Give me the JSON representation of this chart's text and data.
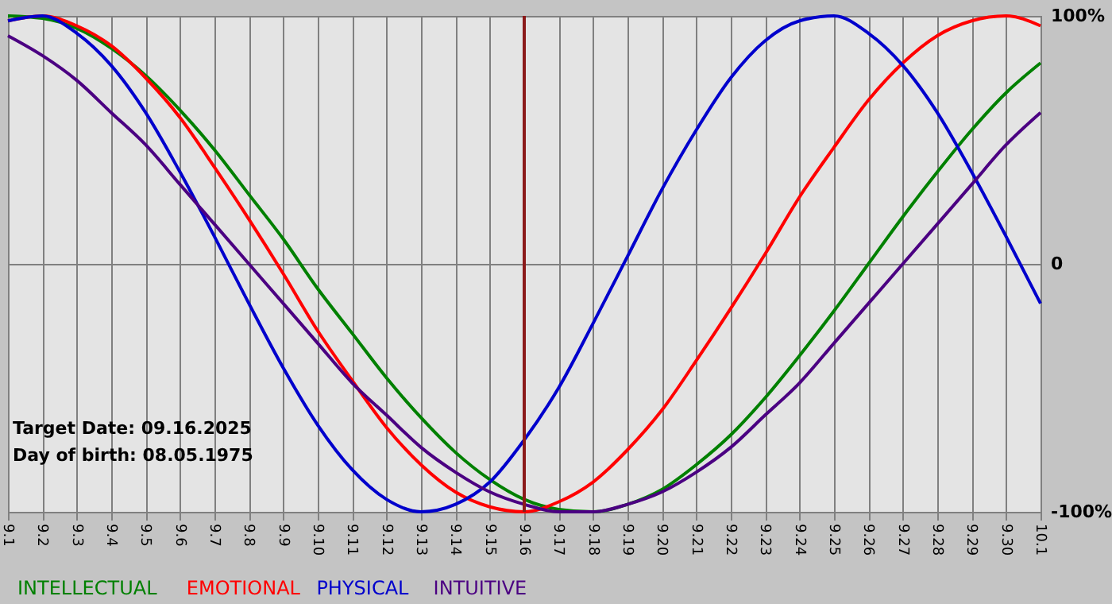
{
  "chart_data": {
    "type": "line",
    "categories": [
      "9.1",
      "9.2",
      "9.3",
      "9.4",
      "9.5",
      "9.6",
      "9.7",
      "9.8",
      "9.9",
      "9.10",
      "9.11",
      "9.12",
      "9.13",
      "9.14",
      "9.15",
      "9.16",
      "9.17",
      "9.18",
      "9.19",
      "9.20",
      "9.21",
      "9.22",
      "9.23",
      "9.24",
      "9.25",
      "9.26",
      "9.27",
      "9.28",
      "9.29",
      "9.30",
      "10.1"
    ],
    "series": [
      {
        "name": "INTELLECTUAL",
        "color": "#008000",
        "values": [
          100,
          99,
          95,
          87,
          76,
          62,
          46,
          28,
          10,
          -10,
          -28,
          -46,
          -62,
          -76,
          -87,
          -95,
          -99,
          -100,
          -97,
          -91,
          -81,
          -69,
          -54,
          -37,
          -19,
          0,
          19,
          37,
          54,
          69,
          81
        ]
      },
      {
        "name": "EMOTIONAL",
        "color": "#ff0000",
        "values": [
          98,
          100,
          96,
          88,
          75,
          59,
          39,
          18,
          -4,
          -27,
          -47,
          -66,
          -81,
          -92,
          -98,
          -100,
          -96,
          -88,
          -75,
          -59,
          -39,
          -18,
          4,
          27,
          47,
          66,
          81,
          92,
          98,
          100,
          96
        ]
      },
      {
        "name": "PHYSICAL",
        "color": "#0000cc",
        "values": [
          98,
          100,
          93,
          80,
          61,
          37,
          11,
          -16,
          -42,
          -65,
          -83,
          -95,
          -100,
          -97,
          -88,
          -71,
          -50,
          -24,
          3,
          30,
          54,
          75,
          90,
          98,
          100,
          93,
          80,
          61,
          37,
          11,
          -16
        ]
      },
      {
        "name": "INTUITIVE",
        "color": "#4b0082",
        "values": [
          92,
          84,
          74,
          61,
          48,
          32,
          16,
          0,
          -16,
          -32,
          -48,
          -61,
          -74,
          -84,
          -92,
          -97,
          -100,
          -100,
          -97,
          -92,
          -84,
          -74,
          -61,
          -48,
          -32,
          -16,
          0,
          16,
          32,
          48,
          61
        ]
      }
    ],
    "ylim": [
      -100,
      100
    ],
    "yticks": [
      {
        "value": -100,
        "label": "-100%"
      },
      0,
      {
        "value": 100,
        "label": "100%"
      }
    ],
    "grid": true,
    "ref_lines": [
      {
        "axis": "x",
        "value": "9.16",
        "color": "#8b1a1a"
      }
    ],
    "annotations": [
      "Target Date: 09.16.2025",
      "Day of birth: 08.05.1975"
    ]
  }
}
